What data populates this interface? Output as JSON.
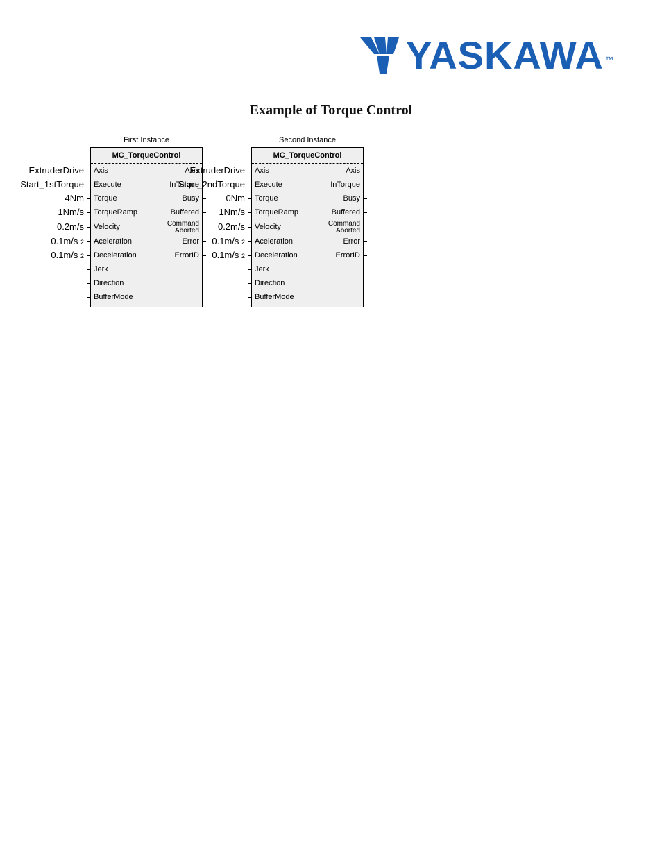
{
  "brand": {
    "name": "YASKAWA",
    "color": "#1a5fb4",
    "tm": "™"
  },
  "title": "Example of Torque Control",
  "title_fontsize": 20,
  "title_font": "Times New Roman",
  "instances": [
    {
      "label": "First Instance",
      "block_name": "MC_TorqueControl",
      "inputs": [
        {
          "pin": "Axis",
          "ext": "ExtruderDrive",
          "stub": true
        },
        {
          "pin": "Execute",
          "ext": "Start_1stTorque",
          "stub": true
        },
        {
          "pin": "Torque",
          "ext": "4Nm",
          "stub": true
        },
        {
          "pin": "TorqueRamp",
          "ext": "1Nm/s",
          "stub": true
        },
        {
          "pin": "Velocity",
          "ext": "0.2m/s",
          "stub": true
        },
        {
          "pin": "Aceleration",
          "ext": "0.1m/s",
          "sup": "2",
          "stub": true
        },
        {
          "pin": "Deceleration",
          "ext": "0.1m/s",
          "sup": "2",
          "stub": true
        },
        {
          "pin": "Jerk",
          "ext": "",
          "stub": true
        },
        {
          "pin": "Direction",
          "ext": "",
          "stub": true
        },
        {
          "pin": "BufferMode",
          "ext": "",
          "stub": true
        }
      ],
      "outputs": [
        {
          "pin": "Axis",
          "stub": true
        },
        {
          "pin": "InTorque",
          "stub": true
        },
        {
          "pin": "Busy",
          "stub": true
        },
        {
          "pin": "Buffered",
          "stub": true
        },
        {
          "pin": "Command\nAborted",
          "two_line": true,
          "stub": false
        },
        {
          "pin": "Error",
          "stub": true
        },
        {
          "pin": "ErrorID",
          "stub": true
        },
        {
          "pin": "",
          "stub": false
        },
        {
          "pin": "",
          "stub": false
        },
        {
          "pin": "",
          "stub": false
        }
      ]
    },
    {
      "label": "Second Instance",
      "block_name": "MC_TorqueControl",
      "inputs": [
        {
          "pin": "Axis",
          "ext": "ExtruderDrive",
          "stub": true
        },
        {
          "pin": "Execute",
          "ext": "Start_2ndTorque",
          "stub": true
        },
        {
          "pin": "Torque",
          "ext": "0Nm",
          "stub": true
        },
        {
          "pin": "TorqueRamp",
          "ext": "1Nm/s",
          "stub": true
        },
        {
          "pin": "Velocity",
          "ext": "0.2m/s",
          "stub": true
        },
        {
          "pin": "Aceleration",
          "ext": "0.1m/s",
          "sup": "2",
          "stub": true
        },
        {
          "pin": "Deceleration",
          "ext": "0.1m/s",
          "sup": "2",
          "stub": true
        },
        {
          "pin": "Jerk",
          "ext": "",
          "stub": true
        },
        {
          "pin": "Direction",
          "ext": "",
          "stub": true
        },
        {
          "pin": "BufferMode",
          "ext": "",
          "stub": true
        }
      ],
      "outputs": [
        {
          "pin": "Axis",
          "stub": true
        },
        {
          "pin": "InTorque",
          "stub": true
        },
        {
          "pin": "Busy",
          "stub": true
        },
        {
          "pin": "Buffered",
          "stub": true
        },
        {
          "pin": "Command\nAborted",
          "two_line": true,
          "stub": false
        },
        {
          "pin": "Error",
          "stub": true
        },
        {
          "pin": "ErrorID",
          "stub": true
        },
        {
          "pin": "",
          "stub": false
        },
        {
          "pin": "",
          "stub": false
        },
        {
          "pin": "",
          "stub": false
        }
      ]
    }
  ],
  "colors": {
    "background": "#ffffff",
    "block_bg": "#efefef",
    "border": "#000000",
    "text": "#000000"
  },
  "typography": {
    "body_font": "Arial",
    "fb_fontsize": 11,
    "ext_label_fontsize": 13
  }
}
